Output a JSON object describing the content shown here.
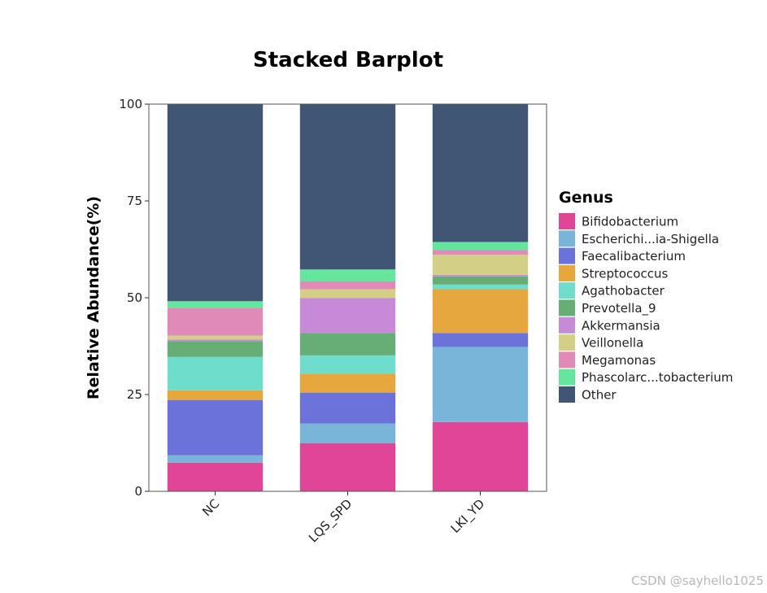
{
  "chart_data": {
    "type": "bar",
    "stacked": true,
    "title": "Stacked Barplot",
    "xlabel": "",
    "ylabel": "Relative Abundance(%)",
    "ylim": [
      0,
      100
    ],
    "yticks": [
      0,
      25,
      50,
      75,
      100
    ],
    "categories": [
      "NC",
      "LQS_SPD",
      "LKI_YD"
    ],
    "legend_title": "Genus",
    "legend_position": "right",
    "grid": false,
    "series": [
      {
        "name": "Bifidobacterium",
        "color": "#E04597",
        "values": [
          7.4,
          12.4,
          17.9
        ]
      },
      {
        "name": "Escherichi...ia-Shigella",
        "color": "#79B4D9",
        "values": [
          1.9,
          5.1,
          19.4
        ]
      },
      {
        "name": "Faecalibacterium",
        "color": "#6B73DB",
        "values": [
          14.3,
          8.0,
          3.6
        ]
      },
      {
        "name": "Streptococcus",
        "color": "#E6A73E",
        "values": [
          2.5,
          4.9,
          11.3
        ]
      },
      {
        "name": "Agathobacter",
        "color": "#6EDDCC",
        "values": [
          8.6,
          4.7,
          1.2
        ]
      },
      {
        "name": "Prevotella_9",
        "color": "#66AE76",
        "values": [
          4.1,
          5.8,
          2.1
        ]
      },
      {
        "name": "Akkermansia",
        "color": "#C68AD9",
        "values": [
          0.4,
          9.0,
          0.4
        ]
      },
      {
        "name": "Veillonella",
        "color": "#D4CF86",
        "values": [
          1.0,
          2.3,
          5.2
        ]
      },
      {
        "name": "Megamonas",
        "color": "#E08BB7",
        "values": [
          7.2,
          2.0,
          1.2
        ]
      },
      {
        "name": "Phascolarc...tobacterium",
        "color": "#65E69E",
        "values": [
          1.7,
          3.1,
          2.1
        ]
      },
      {
        "name": "Other",
        "color": "#415574",
        "values": [
          50.9,
          42.7,
          35.6
        ]
      }
    ]
  },
  "watermark": "CSDN @sayhello1025"
}
